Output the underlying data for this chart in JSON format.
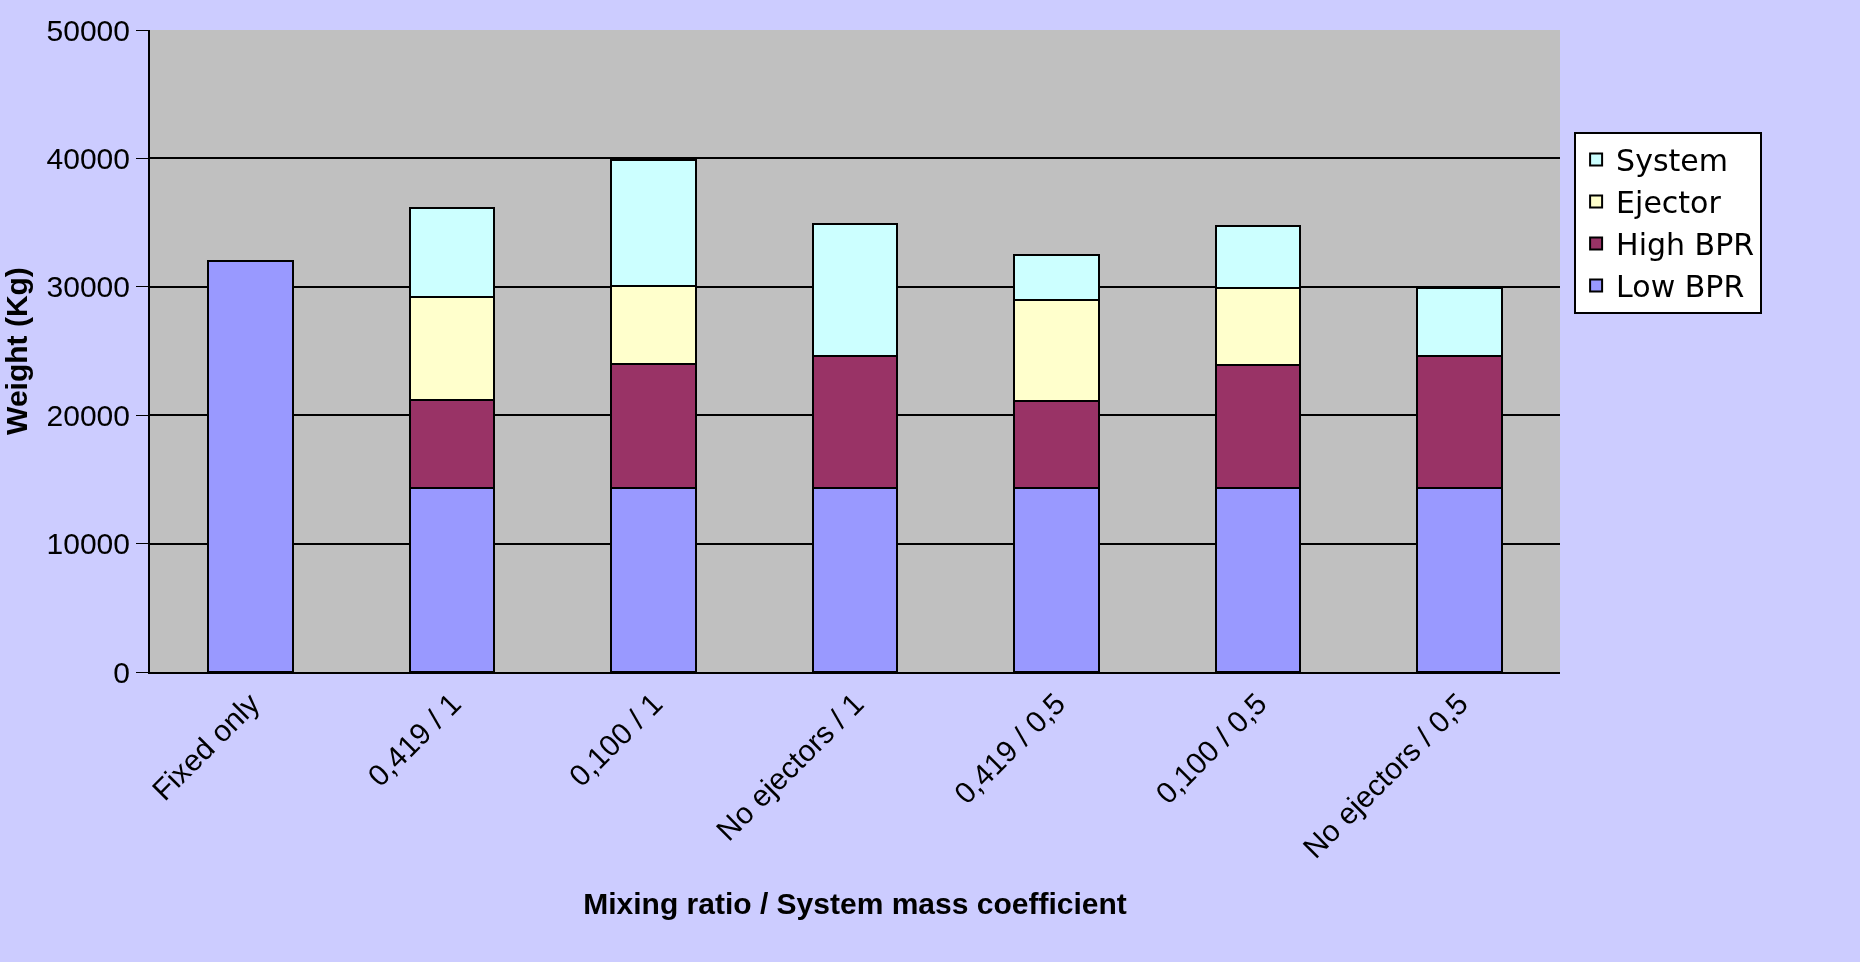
{
  "chart_data": {
    "type": "bar",
    "stacked": true,
    "xlabel": "Mixing ratio / System mass coefficient",
    "ylabel": "Weight (Kg)",
    "categories": [
      "Fixed only",
      "0,419 / 1",
      "0,100 / 1",
      "No ejectors / 1",
      "0,419 / 0,5",
      "0,100 / 0,5",
      "No ejectors / 0,5"
    ],
    "series": [
      {
        "name": "Low BPR",
        "color": "#9999ff",
        "values": [
          32000,
          14300,
          14300,
          14300,
          14300,
          14300,
          14300
        ]
      },
      {
        "name": "High BPR",
        "color": "#993366",
        "values": [
          null,
          6900,
          9700,
          10300,
          6800,
          9600,
          10300
        ]
      },
      {
        "name": "Ejector",
        "color": "#ffffcc",
        "values": [
          null,
          8000,
          6100,
          null,
          7900,
          6000,
          null
        ]
      },
      {
        "name": "System",
        "color": "#ccffff",
        "values": [
          null,
          6900,
          9800,
          10300,
          3500,
          4800,
          5300
        ]
      }
    ],
    "ylim": [
      0,
      50000
    ],
    "yticks": [
      0,
      10000,
      20000,
      30000,
      40000,
      50000
    ],
    "grid": "y",
    "legend": "right"
  }
}
